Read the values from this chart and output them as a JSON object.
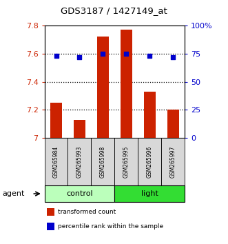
{
  "title": "GDS3187 / 1427149_at",
  "samples": [
    "GSM265984",
    "GSM265993",
    "GSM265998",
    "GSM265995",
    "GSM265996",
    "GSM265997"
  ],
  "bar_values": [
    7.25,
    7.13,
    7.72,
    7.77,
    7.33,
    7.2
  ],
  "percentile_values": [
    73,
    72,
    75,
    75,
    73,
    72
  ],
  "bar_color": "#cc2200",
  "dot_color": "#0000cc",
  "ylim_left": [
    7.0,
    7.8
  ],
  "ylim_right": [
    0,
    100
  ],
  "yticks_left": [
    7.0,
    7.2,
    7.4,
    7.6,
    7.8
  ],
  "yticks_right": [
    0,
    25,
    50,
    75,
    100
  ],
  "ytick_labels_right": [
    "0",
    "25",
    "50",
    "75",
    "100%"
  ],
  "groups": [
    {
      "label": "control",
      "indices": [
        0,
        1,
        2
      ],
      "color": "#bbffbb"
    },
    {
      "label": "light",
      "indices": [
        3,
        4,
        5
      ],
      "color": "#33dd33"
    }
  ],
  "group_row_label": "agent",
  "legend_items": [
    {
      "label": "transformed count",
      "color": "#cc2200"
    },
    {
      "label": "percentile rank within the sample",
      "color": "#0000cc"
    }
  ],
  "bar_width": 0.5,
  "sample_area_bg": "#d8d8d8",
  "plot_bg": "#ffffff",
  "grid_color": "#000000"
}
